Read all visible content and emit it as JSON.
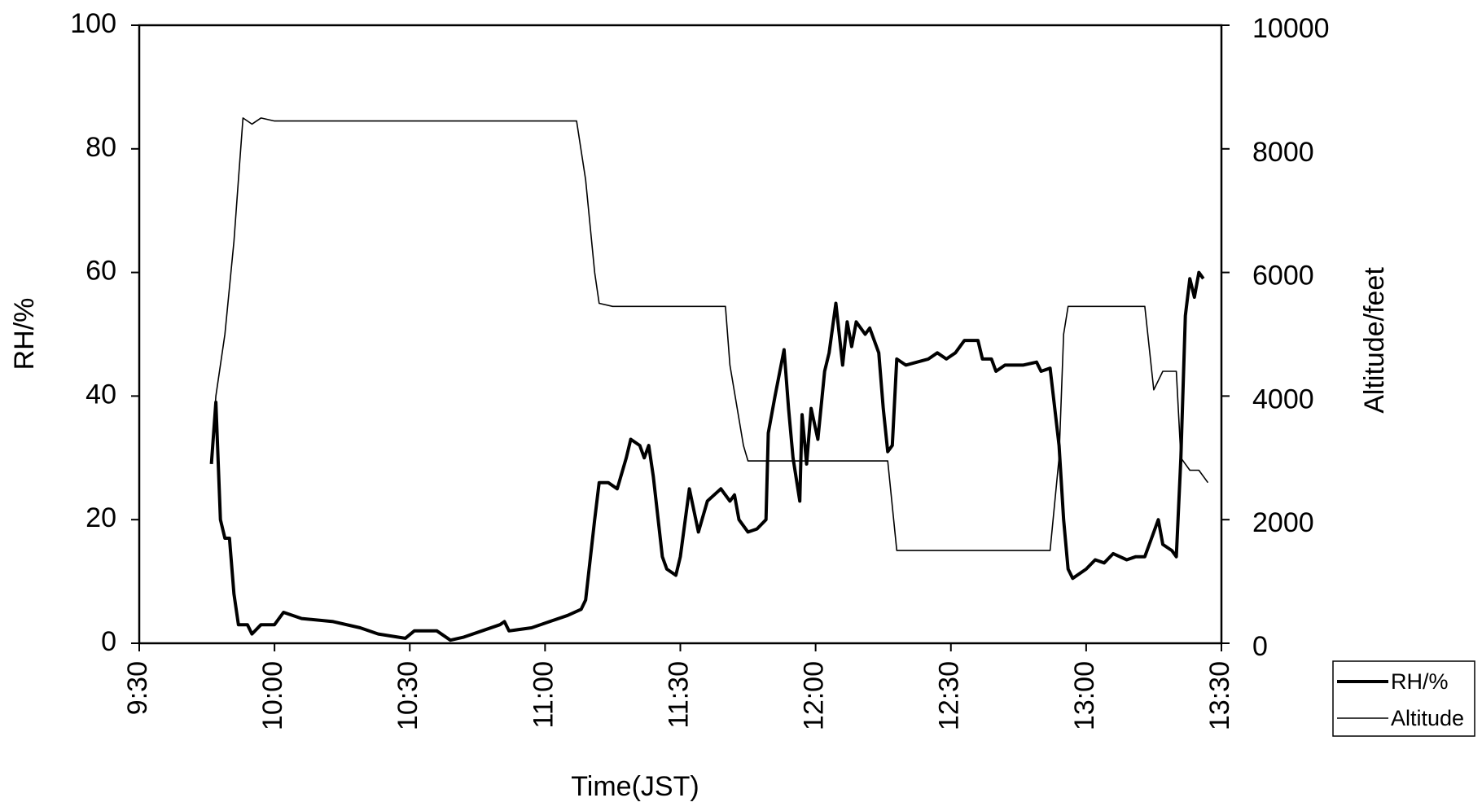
{
  "chart_data": {
    "type": "line",
    "x_label": "Time(JST)",
    "y_label": "RH/%",
    "y2_label": "Altitude/feet",
    "xlim": [
      570,
      810
    ],
    "xticks": [
      {
        "value": 570,
        "label": "9:30"
      },
      {
        "value": 600,
        "label": "10:00"
      },
      {
        "value": 630,
        "label": "10:30"
      },
      {
        "value": 660,
        "label": "11:00"
      },
      {
        "value": 690,
        "label": "11:30"
      },
      {
        "value": 720,
        "label": "12:00"
      },
      {
        "value": 750,
        "label": "12:30"
      },
      {
        "value": 780,
        "label": "13:00"
      },
      {
        "value": 810,
        "label": "13:30"
      }
    ],
    "ylim": [
      0,
      100
    ],
    "yticks": [
      0,
      20,
      40,
      60,
      80,
      100
    ],
    "y2lim": [
      0,
      10000
    ],
    "y2ticks": [
      0,
      2000,
      4000,
      6000,
      8000,
      10000
    ],
    "legend": "outside-bottom-right",
    "series": [
      {
        "name": "RH/%",
        "color": "#000000",
        "width": 4,
        "x": [
          586,
          587,
          588,
          589,
          590,
          591,
          592,
          594,
          595,
          597,
          600,
          602,
          606,
          613,
          619,
          623,
          629,
          631,
          636,
          639,
          642,
          646,
          650,
          651,
          652,
          657,
          661,
          665,
          668,
          669,
          671,
          672,
          674,
          676,
          678,
          679,
          681,
          682,
          683,
          684,
          686,
          687,
          689,
          690,
          692,
          694,
          696,
          699,
          701,
          702,
          703,
          705,
          707,
          709,
          709.5,
          711,
          713,
          714,
          715,
          716.5,
          717,
          718,
          719,
          720.5,
          722,
          723,
          724.5,
          726,
          727,
          728,
          729,
          731,
          732,
          734,
          735,
          736,
          737,
          738,
          740,
          745,
          747,
          749,
          751,
          753,
          756,
          757,
          759,
          760,
          762,
          766,
          769,
          770,
          772,
          774,
          775,
          776,
          777,
          780,
          782,
          784,
          786,
          789,
          791,
          793,
          794.5,
          796,
          797,
          799,
          800,
          801,
          802,
          803,
          804,
          805,
          806
        ],
        "values": [
          29,
          39,
          20,
          17,
          17,
          8,
          3,
          3,
          1.5,
          3,
          3,
          5,
          4,
          3.5,
          2.5,
          1.5,
          0.8,
          2,
          2,
          0.5,
          1,
          2,
          3,
          3.5,
          2,
          2.5,
          3.5,
          4.5,
          5.5,
          7,
          20,
          26,
          26,
          25,
          30,
          33,
          32,
          30,
          32,
          27,
          14,
          12,
          11,
          14,
          25,
          18,
          23,
          25,
          23,
          24,
          20,
          18,
          18.5,
          20,
          34,
          40,
          47.5,
          38,
          30,
          23,
          37,
          29,
          38,
          33,
          44,
          47,
          55,
          45,
          52,
          48,
          52,
          50,
          51,
          47,
          38,
          31,
          32,
          46,
          45,
          46,
          47,
          46,
          47,
          49,
          49,
          46,
          46,
          44,
          45,
          45,
          45.5,
          44,
          44.5,
          32,
          20,
          12,
          10.5,
          12,
          13.5,
          13,
          14.5,
          13.5,
          14,
          14,
          17,
          20,
          16,
          15,
          14,
          30,
          53,
          59,
          56,
          60,
          59
        ]
      },
      {
        "name": "Altitude",
        "color": "#000000",
        "width": 1.6,
        "axis": "y2",
        "x": [
          586,
          587,
          589,
          591,
          592,
          593,
          595,
          597,
          600,
          667,
          669,
          671,
          672,
          675,
          700,
          701,
          704,
          705,
          736,
          738,
          772,
          774,
          775,
          776,
          793,
          795,
          797,
          800,
          801,
          803,
          805,
          807
        ],
        "values": [
          3000,
          4000,
          5000,
          6500,
          7500,
          8500,
          8400,
          8500,
          8450,
          8450,
          7500,
          6000,
          5500,
          5450,
          5450,
          4500,
          3200,
          2950,
          2950,
          1500,
          1500,
          3000,
          5000,
          5450,
          5450,
          4100,
          4400,
          4400,
          3000,
          2800,
          2800,
          2600
        ]
      }
    ]
  }
}
